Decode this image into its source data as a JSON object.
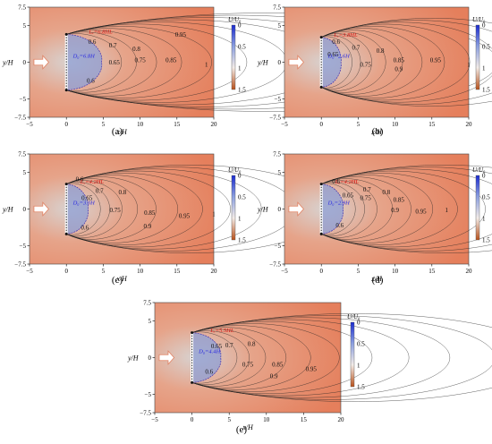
{
  "chart_data": {
    "type": "contour",
    "x_axis": {
      "label": "x/H",
      "ticks": [
        "−5",
        "0",
        "5",
        "10",
        "15",
        "20"
      ],
      "range": [
        -5,
        20
      ]
    },
    "y_axis": {
      "label": "y/H",
      "ticks": [
        "7.5",
        "5",
        "0",
        "−5",
        "−7.5"
      ],
      "range": [
        -7.5,
        7.5
      ]
    },
    "colorbar": {
      "label": "U/U₀",
      "ticks": [
        "0",
        "0.5",
        "1",
        "1.5"
      ],
      "range": [
        0,
        1.5
      ]
    },
    "panels": [
      {
        "caption": "(a)",
        "lx_label": "Lₓ=6.8HL",
        "dy_label": "D₀=6.8H",
        "contour_labels": [
          {
            "v": "0.6",
            "x": 3.5,
            "y": 2.5
          },
          {
            "v": "0.7",
            "x": 6.3,
            "y": 2.0
          },
          {
            "v": "0.8",
            "x": 9.5,
            "y": 1.5
          },
          {
            "v": "0.95",
            "x": 15.5,
            "y": 3.5
          },
          {
            "v": "0.65",
            "x": 6.5,
            "y": -0.3
          },
          {
            "v": "0.75",
            "x": 10.0,
            "y": 0.0
          },
          {
            "v": "0.85",
            "x": 14.2,
            "y": 0.0
          },
          {
            "v": "1",
            "x": 19.0,
            "y": -0.6
          },
          {
            "v": "0.6",
            "x": 3.3,
            "y": -2.8
          }
        ]
      },
      {
        "caption": "(b)",
        "lx_label": "Lₓ=3.8HL",
        "dy_label": "D₀=2.6H",
        "contour_labels": [
          {
            "v": "0.6",
            "x": 2.0,
            "y": 2.5
          },
          {
            "v": "0.7",
            "x": 4.7,
            "y": 1.7
          },
          {
            "v": "0.8",
            "x": 8.0,
            "y": 1.3
          },
          {
            "v": "0.65",
            "x": 1.6,
            "y": 0.8
          },
          {
            "v": "0.75",
            "x": 6.0,
            "y": -0.6
          },
          {
            "v": "0.85",
            "x": 10.5,
            "y": 0.0
          },
          {
            "v": "0.95",
            "x": 15.5,
            "y": 0.0
          },
          {
            "v": "0.9",
            "x": 10.5,
            "y": -1.2
          },
          {
            "v": "1",
            "x": 20.0,
            "y": -0.6
          }
        ]
      },
      {
        "caption": "(c)",
        "lx_label": "Lₓ=4.2HL",
        "dy_label": "D₀=3.0H",
        "contour_labels": [
          {
            "v": "0.6",
            "x": 1.8,
            "y": 3.8
          },
          {
            "v": "0.7",
            "x": 4.5,
            "y": 2.2
          },
          {
            "v": "0.8",
            "x": 7.6,
            "y": 2.0
          },
          {
            "v": "0.65",
            "x": 2.8,
            "y": 1.2
          },
          {
            "v": "0.75",
            "x": 6.6,
            "y": -0.4
          },
          {
            "v": "0.85",
            "x": 11.3,
            "y": -0.8
          },
          {
            "v": "0.95",
            "x": 16.0,
            "y": -1.2
          },
          {
            "v": "1",
            "x": 20.0,
            "y": -1.0
          },
          {
            "v": "0.9",
            "x": 11.0,
            "y": -2.6
          },
          {
            "v": "0.6",
            "x": 2.5,
            "y": -2.8
          }
        ]
      },
      {
        "caption": "(d)",
        "lx_label": "Lₓ=4.2HL",
        "dy_label": "D₀=2.9H",
        "contour_labels": [
          {
            "v": "0.6",
            "x": 2.0,
            "y": 3.5
          },
          {
            "v": "0.65",
            "x": 3.6,
            "y": 1.6
          },
          {
            "v": "0.75",
            "x": 6.0,
            "y": 1.2
          },
          {
            "v": "0.7",
            "x": 6.2,
            "y": 2.4
          },
          {
            "v": "0.8",
            "x": 8.8,
            "y": 2.0
          },
          {
            "v": "0.85",
            "x": 10.5,
            "y": 1.0
          },
          {
            "v": "0.9",
            "x": 10.0,
            "y": -0.4
          },
          {
            "v": "0.95",
            "x": 13.5,
            "y": -0.6
          },
          {
            "v": "1",
            "x": 17.0,
            "y": -0.4
          },
          {
            "v": "0.6",
            "x": 2.5,
            "y": -2.5
          }
        ]
      },
      {
        "caption": "(e)",
        "lx_label": "Lₓ=5.5HL",
        "dy_label": "D₀=4.4H",
        "contour_labels": [
          {
            "v": "0.65",
            "x": 3.3,
            "y": 1.3
          },
          {
            "v": "0.7",
            "x": 5.0,
            "y": 1.4
          },
          {
            "v": "0.8",
            "x": 8.0,
            "y": 1.6
          },
          {
            "v": "0.6",
            "x": 2.3,
            "y": -2.2
          },
          {
            "v": "0.75",
            "x": 7.5,
            "y": -1.2
          },
          {
            "v": "0.85",
            "x": 11.5,
            "y": -1.2
          },
          {
            "v": "0.95",
            "x": 16.0,
            "y": -1.8
          },
          {
            "v": "0.9",
            "x": 11.0,
            "y": -2.8
          }
        ]
      }
    ]
  }
}
